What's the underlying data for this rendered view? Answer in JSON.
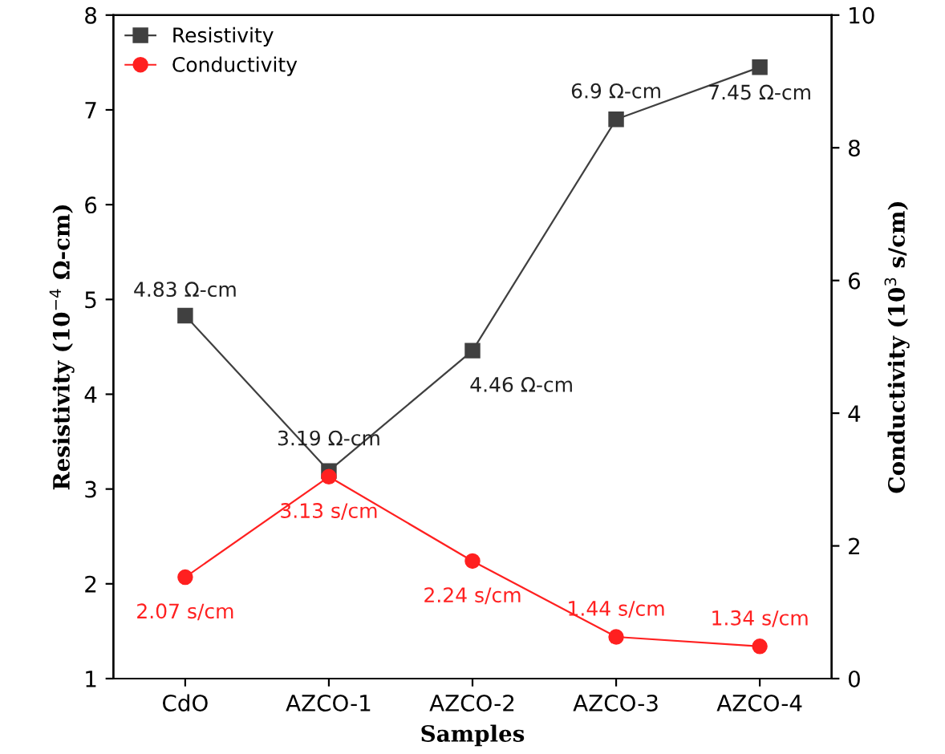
{
  "chart_data": {
    "type": "line",
    "xlabel": "Samples",
    "ylabel": "Resistivity (10$^{−4}$ Ω-cm)",
    "y2label": "Conductivity (10$^{3}$ s/cm)",
    "categories": [
      "CdO",
      "AZCO-1",
      "AZCO-2",
      "AZCO-3",
      "AZCO-4"
    ],
    "series": [
      {
        "name": "Resistivity",
        "color": "#404040",
        "marker": "square",
        "values": [
          4.83,
          3.19,
          4.46,
          6.9,
          7.45
        ],
        "value_labels": [
          "4.83 Ω-cm",
          "3.19 Ω-cm",
          "4.46 Ω-cm",
          "6.9 Ω-cm",
          "7.45 Ω-cm"
        ]
      },
      {
        "name": "Conductivity",
        "color": "#ff2020",
        "marker": "circle",
        "values": [
          2.07,
          3.13,
          2.24,
          1.44,
          1.34
        ],
        "value_labels": [
          "2.07 s/cm",
          "3.13 s/cm",
          "2.24 s/cm",
          "1.44 s/cm",
          "1.34 s/cm"
        ]
      }
    ],
    "ylim": [
      1,
      8
    ],
    "yticks": [
      1,
      2,
      3,
      4,
      5,
      6,
      7,
      8
    ],
    "y2lim": [
      0,
      10
    ],
    "y2ticks": [
      0,
      2,
      4,
      6,
      8,
      10
    ],
    "legend": "top left",
    "grid": false,
    "line_style": "solid"
  }
}
